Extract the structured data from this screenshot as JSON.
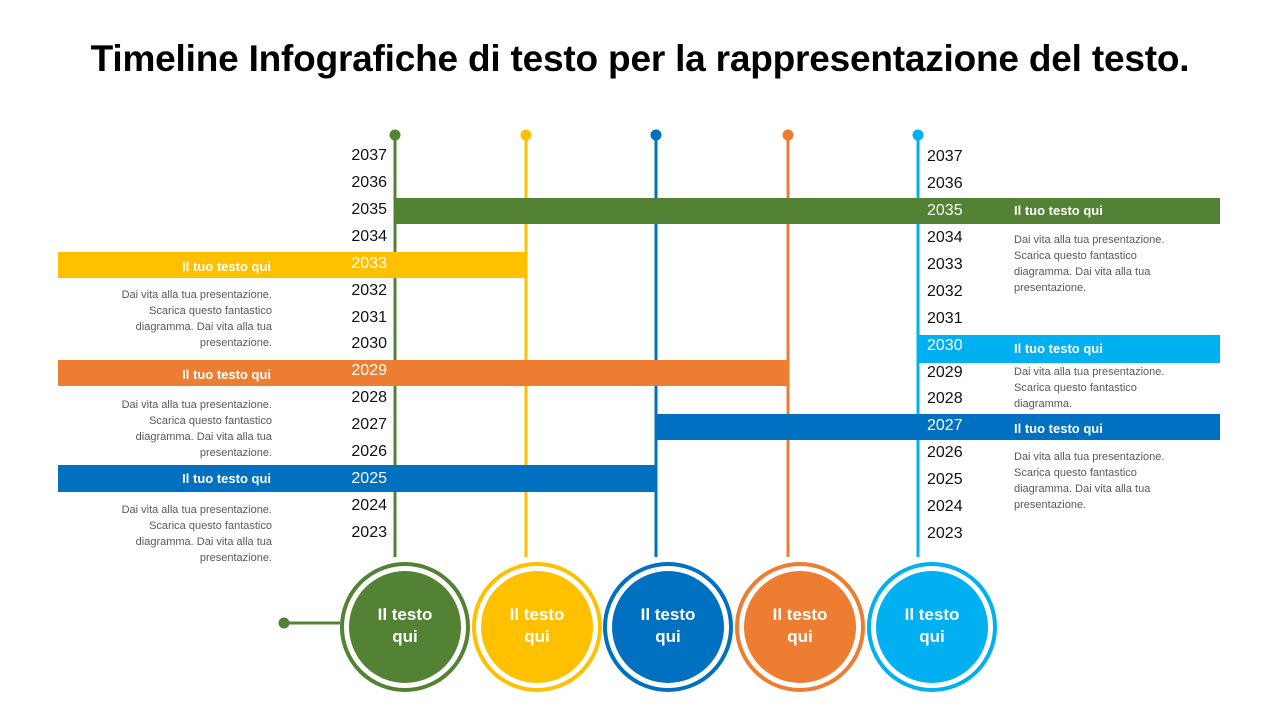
{
  "title": "Timeline Infografiche di testo per la rappresentazione del testo.",
  "colors": {
    "green": "#548235",
    "yellow": "#FFC000",
    "blue": "#0070C0",
    "orange": "#ED7D31",
    "lightblue": "#00B0F0"
  },
  "years_left": [
    "2037",
    "2036",
    "2035",
    "2034",
    "2033",
    "2032",
    "2031",
    "2030",
    "2029",
    "2028",
    "2027",
    "2026",
    "2025",
    "2024",
    "2023"
  ],
  "years_right": [
    "2037",
    "2036",
    "2035",
    "2034",
    "2033",
    "2032",
    "2031",
    "2030",
    "2029",
    "2028",
    "2027",
    "2026",
    "2025",
    "2024",
    "2023"
  ],
  "bars": [
    {
      "label": "Il tuo testo qui",
      "color": "#548235"
    },
    {
      "label": "Il tuo testo qui",
      "color": "#FFC000"
    },
    {
      "label": "Il tuo testo qui",
      "color": "#ED7D31"
    },
    {
      "label": "Il tuo testo qui",
      "color": "#0070C0"
    },
    {
      "label": "Il tuo testo qui",
      "color": "#00B0F0"
    },
    {
      "label": "Il tuo testo qui",
      "color": "#0070C0"
    }
  ],
  "descriptions": [
    {
      "lines": [
        "Dai vita alla tua presentazione.",
        "Scarica questo fantastico",
        "diagramma. Dai vita alla tua",
        "presentazione."
      ]
    },
    {
      "lines": [
        "Dai vita alla tua presentazione.",
        "Scarica questo fantastico",
        "diagramma. Dai vita alla tua",
        "presentazione."
      ]
    },
    {
      "lines": [
        "Dai vita alla tua presentazione.",
        "Scarica questo fantastico",
        "diagramma. Dai vita alla tua",
        "presentazione."
      ]
    },
    {
      "lines": [
        "Dai vita alla tua presentazione.",
        "Scarica questo fantastico",
        "diagramma. Dai vita alla tua",
        "presentazione."
      ]
    },
    {
      "lines": [
        "Dai vita alla tua presentazione.",
        "Scarica questo fantastico",
        "diagramma."
      ]
    },
    {
      "lines": [
        "Dai vita alla tua presentazione.",
        "Scarica questo fantastico",
        "diagramma. Dai vita alla tua",
        "presentazione."
      ]
    }
  ],
  "circles": [
    {
      "line1": "Il testo",
      "line2": "qui",
      "color": "#548235"
    },
    {
      "line1": "Il testo",
      "line2": "qui",
      "color": "#FFC000"
    },
    {
      "line1": "Il testo",
      "line2": "qui",
      "color": "#0070C0"
    },
    {
      "line1": "Il testo",
      "line2": "qui",
      "color": "#ED7D31"
    },
    {
      "line1": "Il testo",
      "line2": "qui",
      "color": "#00B0F0"
    }
  ]
}
